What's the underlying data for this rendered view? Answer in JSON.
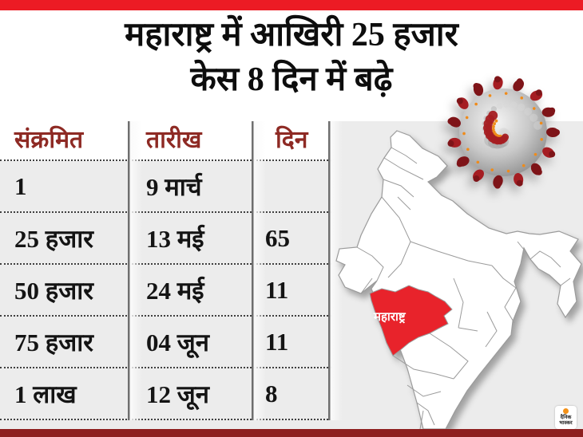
{
  "title": {
    "line1": "महाराष्ट्र में आखिरी 25 हजार",
    "line2": "केस 8 दिन में बढ़े"
  },
  "table": {
    "headers": {
      "infected": "संक्रमित",
      "date": "तारीख",
      "days": "दिन"
    },
    "rows": [
      {
        "infected": "1",
        "date": "9 मार्च",
        "days": ""
      },
      {
        "infected": "25 हजार",
        "date": "13 मई",
        "days": "65"
      },
      {
        "infected": "50 हजार",
        "date": "24 मई",
        "days": "11"
      },
      {
        "infected": "75 हजार",
        "date": "04 जून",
        "days": "11"
      },
      {
        "infected": "1 लाख",
        "date": "12 जून",
        "days": "8"
      }
    ]
  },
  "map": {
    "highlight_label": "महाराष्ट्र",
    "highlight_color": "#e8232b"
  },
  "logo": {
    "line1": "दैनिक",
    "line2": "भास्कर"
  },
  "colors": {
    "top_bar": "#ec1b24",
    "bottom_bar": "#8e1f1f",
    "header_text": "#8e2a24",
    "panel_gray": "#ececec",
    "virus_red": "#a51d22",
    "virus_red_dark": "#7e1418",
    "virus_orange": "#ef8b1a"
  },
  "chart_data": {
    "type": "table",
    "title": "महाराष्ट्र में आखिरी 25 हजार केस 8 दिन में बढ़े",
    "columns": [
      "संक्रमित",
      "तारीख",
      "दिन"
    ],
    "rows": [
      [
        "1",
        "9 मार्च",
        ""
      ],
      [
        "25 हजार",
        "13 मई",
        "65"
      ],
      [
        "50 हजार",
        "24 मई",
        "11"
      ],
      [
        "75 हजार",
        "04 जून",
        "11"
      ],
      [
        "1 लाख",
        "12 जून",
        "8"
      ]
    ],
    "notes": "COVID-19 infographic: milestones of infected counts in Maharashtra, date reached, and days taken for each additional 25k cases"
  }
}
